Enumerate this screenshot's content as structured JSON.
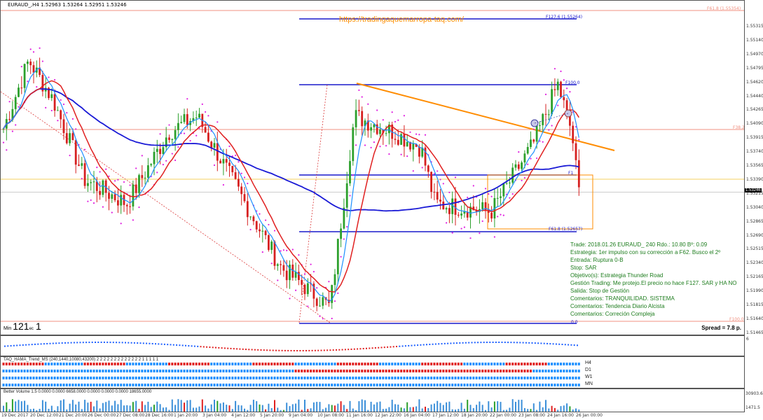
{
  "header": {
    "symbol_line": "EURAUD_,H4  1.52963 1.53264 1.52951 1.53246"
  },
  "watermark": "https://tradingaquemarropa-taq.com/",
  "price_axis": [
    "1.55315",
    "1.55140",
    "1.54970",
    "1.54795",
    "1.54620",
    "1.54440",
    "1.54265",
    "1.54090",
    "1.53915",
    "1.53740",
    "1.53565",
    "1.53390",
    "1.53215",
    "1.53040",
    "1.52865",
    "1.52690",
    "1.52515",
    "1.52340",
    "1.52165",
    "1.51990",
    "1.51815",
    "1.51640",
    "1.51465"
  ],
  "current_price": "1.53246",
  "level_labels": {
    "f127": "F127.6 (1.55264)",
    "f61_top": "F61.8 (1.55354)",
    "f100": "F100.0",
    "f38": "F38.2",
    "f61": "F61.8 (1.52657)",
    "f0": "0.0",
    "f100b": "F100.0",
    "f1": "F1"
  },
  "min_label": "Min",
  "min_value": "121",
  "min_suffix": "ec",
  "min_value2": "1",
  "spread": "Spread = 7.8 p.",
  "trade_info": [
    "Trade: 2018.01.26 EURAUD_ 240  Rdo.: 10.80  Bº: 0.09",
    "Estrategia: 1er impulso con su corrección a F62. Busco el 2º",
    "Entrada: Ruptura 0-B",
    "Stop: SAR",
    "Objetivo(s): Estrategia Thunder Road",
    "Gestión Trading: Me protejo.El precio no hace F127. SAR y HA NO",
    "Salida: Stop de Gestión",
    "Comentarios: TRANQUILIDAD. SISTEMA",
    "Comentarios: Tendencia Diario Alcista",
    "Comentarios: Correción Compleja"
  ],
  "osc_scale": "6",
  "taq": {
    "title": "TAQ_HAMA_Trend_MS (240,1440,10080,43200) 2 2 2 2 2 2 2 2 2 2 2 2 2 1 1 1 1 1",
    "rows": [
      "H4",
      "D1",
      "W1",
      "MN"
    ]
  },
  "volume": {
    "title": "Better Volume 1.5 0.0000 0.0000 6658.0000 0.0000 0.0000 0.0000 18655.0000",
    "scale_top": "30903.6",
    "scale_bot": "1471.5"
  },
  "time_axis": [
    "19 Dec 2017",
    "20 Dec 12:00",
    "21 Dec 20:00",
    "26 Dec 00:00",
    "27 Dec 08:00",
    "28 Dec 16:00",
    "1 Jan 20:00",
    "3 Jan 04:00",
    "4 Jan 12:00",
    "5 Jan 20:00",
    "9 Jan 04:00",
    "10 Jan 08:00",
    "11 Jan 16:00",
    "12 Jan 22:00",
    "16 Jan 04:00",
    "17 Jan 12:00",
    "18 Jan 20:00",
    "22 Jan 00:00",
    "23 Jan 08:00",
    "24 Jan 16:00",
    "26 Jan 00:00"
  ],
  "colors": {
    "bull": "#2ca02c",
    "bear": "#d62020",
    "ma_slow": "#1a1ad6",
    "ma_fast": "#1e90ff",
    "ma_red": "#e02020",
    "trend": "#ff8c00",
    "sar": "#e020e0",
    "fib": "#1a1acc",
    "level": "#f09080"
  }
}
